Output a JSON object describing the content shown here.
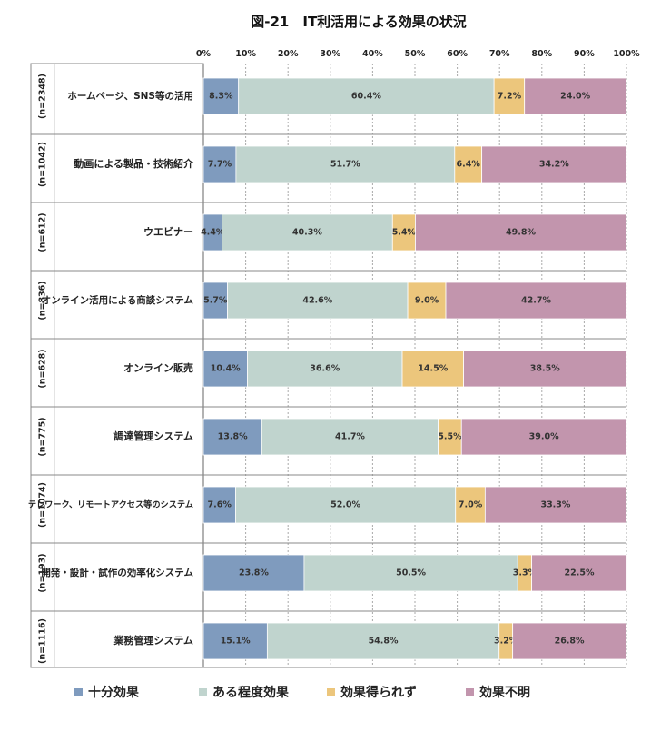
{
  "chart_data": {
    "type": "bar",
    "orientation": "horizontal",
    "stacked": true,
    "title": "図-21　IT利活用による効果の状況",
    "xlim": [
      0,
      100
    ],
    "x_ticks": [
      "0%",
      "10%",
      "20%",
      "30%",
      "40%",
      "50%",
      "60%",
      "70%",
      "80%",
      "90%",
      "100%"
    ],
    "grid": true,
    "legend_position": "bottom",
    "categories": [
      "ホームページ、SNS等の活用",
      "動画による製品・技術紹介",
      "ウエビナー",
      "オンライン活用による商談システム",
      "オンライン販売",
      "調達管理システム",
      "テレワーク、リモートアクセス等のシステム",
      "開発・設計・試作の効率化システム",
      "業務管理システム"
    ],
    "n_labels": [
      "(n=2348)",
      "(n=1042)",
      "(n=612)",
      "(n=836)",
      "(n=628)",
      "(n=775)",
      "(n=1074)",
      "(n=193)",
      "(n=1116)"
    ],
    "series": [
      {
        "name": "十分効果",
        "color": "#7f9bbe",
        "values": [
          8.3,
          7.7,
          4.4,
          5.7,
          10.4,
          13.8,
          7.6,
          23.8,
          15.1
        ],
        "labels": [
          "8.3%",
          "7.7%",
          "4.4%",
          "5.7%",
          "10.4%",
          "13.8%",
          "7.6%",
          "23.8%",
          "15.1%"
        ]
      },
      {
        "name": "ある程度効果",
        "color": "#c0d4ce",
        "values": [
          60.4,
          51.7,
          40.3,
          42.6,
          36.6,
          41.7,
          52.0,
          50.5,
          54.8
        ],
        "labels": [
          "60.4%",
          "51.7%",
          "40.3%",
          "42.6%",
          "36.6%",
          "41.7%",
          "52.0%",
          "50.5%",
          "54.8%"
        ]
      },
      {
        "name": "効果得られず",
        "color": "#ecc67c",
        "values": [
          7.2,
          6.4,
          5.4,
          9.0,
          14.5,
          5.5,
          7.0,
          3.3,
          3.2
        ],
        "labels": [
          "7.2%",
          "6.4%",
          "5.4%",
          "9.0%",
          "14.5%",
          "5.5%",
          "7.0%",
          "3.3%",
          "3.2%"
        ]
      },
      {
        "name": "効果不明",
        "color": "#c295ad",
        "values": [
          24.0,
          34.2,
          49.8,
          42.7,
          38.5,
          39.0,
          33.3,
          22.5,
          26.8
        ],
        "labels": [
          "24.0%",
          "34.2%",
          "49.8%",
          "42.7%",
          "38.5%",
          "39.0%",
          "33.3%",
          "22.5%",
          "26.8%"
        ]
      }
    ]
  }
}
